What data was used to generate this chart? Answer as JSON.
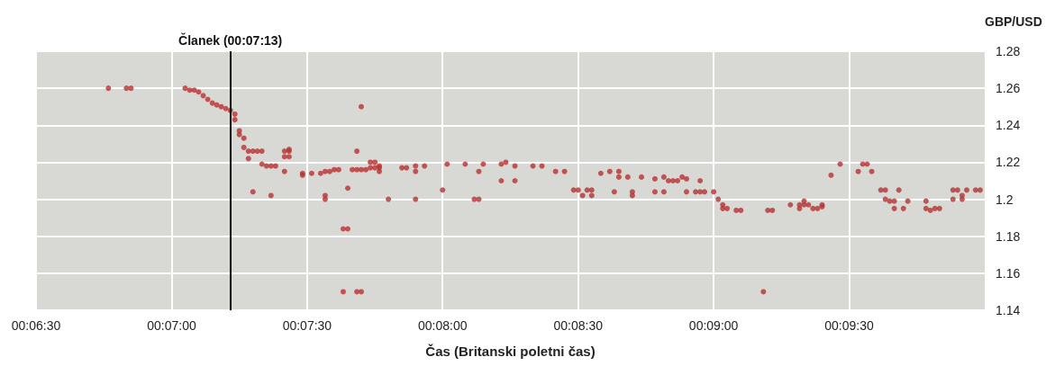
{
  "chart_data": {
    "type": "scatter",
    "xlabel": "Čas (Britanski poletni čas)",
    "ylabel": "GBP/USD",
    "color": "#b83232",
    "marker": "circle",
    "grid": true,
    "xlim": [
      0.10833,
      0.16667
    ],
    "xticks": [
      {
        "value": 0.10833,
        "label": "00:06:30"
      },
      {
        "value": 0.11667,
        "label": "00:07:00"
      },
      {
        "value": 0.125,
        "label": "00:07:30"
      },
      {
        "value": 0.13333,
        "label": "00:08:00"
      },
      {
        "value": 0.14167,
        "label": "00:08:30"
      },
      {
        "value": 0.15,
        "label": "00:09:00"
      },
      {
        "value": 0.15833,
        "label": "00:09:30"
      }
    ],
    "ylim": [
      1.14,
      1.28
    ],
    "yticks": [
      1.14,
      1.16,
      1.18,
      1.2,
      1.22,
      1.24,
      1.26,
      1.28
    ],
    "ref_lines": [
      {
        "axis": "x",
        "value": 0.12028,
        "label": "Članek (00:07:13)",
        "color": "#000000"
      }
    ],
    "x": [
      0.11278,
      0.11389,
      0.11417,
      0.1175,
      0.11778,
      0.11806,
      0.11833,
      0.11861,
      0.11889,
      0.11917,
      0.11944,
      0.11972,
      0.12,
      0.12028,
      0.12056,
      0.12056,
      0.12083,
      0.12083,
      0.12111,
      0.12111,
      0.12139,
      0.12139,
      0.12167,
      0.12222,
      0.12194,
      0.12222,
      0.12167,
      0.1225,
      0.12278,
      0.12306,
      0.12278,
      0.12361,
      0.12361,
      0.12389,
      0.12389,
      0.12361,
      0.12389,
      0.12472,
      0.12472,
      0.12528,
      0.12583,
      0.12611,
      0.12639,
      0.12667,
      0.12694,
      0.12778,
      0.12806,
      0.12833,
      0.12861,
      0.12889,
      0.12917,
      0.12889,
      0.12917,
      0.12944,
      0.12944,
      0.12944,
      0.12833,
      0.12806,
      0.1275,
      0.12611,
      0.12611,
      0.13,
      0.13167,
      0.12722,
      0.1275,
      0.12722,
      0.12806,
      0.12833,
      0.13083,
      0.13111,
      0.13167,
      0.13222,
      0.13167,
      0.13333,
      0.13361,
      0.13472,
      0.13528,
      0.13556,
      0.13556,
      0.13583,
      0.13694,
      0.13694,
      0.13722,
      0.13778,
      0.13778,
      0.13889,
      0.13944,
      0.14028,
      0.14083,
      0.14139,
      0.14167,
      0.14222,
      0.1425,
      0.14194,
      0.1425,
      0.14306,
      0.14361,
      0.14417,
      0.14417,
      0.14472,
      0.14556,
      0.14389,
      0.145,
      0.145,
      0.14639,
      0.14639,
      0.14694,
      0.14722,
      0.1475,
      0.14778,
      0.14806,
      0.14833,
      0.14917,
      0.14694,
      0.14833,
      0.14889,
      0.14917,
      0.14944,
      0.15,
      0.15028,
      0.15056,
      0.15056,
      0.15083,
      0.15139,
      0.15167,
      0.15306,
      0.15333,
      0.15361,
      0.15472,
      0.15528,
      0.15528,
      0.15556,
      0.15556,
      0.15583,
      0.15611,
      0.15639,
      0.15667,
      0.15667,
      0.15722,
      0.15778,
      0.15889,
      0.15917,
      0.15944,
      0.15972,
      0.16028,
      0.16056,
      0.16056,
      0.16083,
      0.16111,
      0.16111,
      0.16139,
      0.16167,
      0.16194,
      0.16306,
      0.16306,
      0.16333,
      0.16361,
      0.16389,
      0.16472,
      0.16472,
      0.165,
      0.16528,
      0.16528,
      0.16556,
      0.16611,
      0.16639
    ],
    "values": [
      1.26,
      1.26,
      1.26,
      1.26,
      1.259,
      1.259,
      1.258,
      1.256,
      1.254,
      1.252,
      1.251,
      1.25,
      1.249,
      1.248,
      1.246,
      1.243,
      1.237,
      1.235,
      1.233,
      1.228,
      1.226,
      1.222,
      1.226,
      1.226,
      1.226,
      1.219,
      1.204,
      1.218,
      1.218,
      1.218,
      1.202,
      1.215,
      1.226,
      1.227,
      1.226,
      1.223,
      1.223,
      1.214,
      1.213,
      1.214,
      1.214,
      1.215,
      1.215,
      1.216,
      1.216,
      1.216,
      1.216,
      1.216,
      1.216,
      1.22,
      1.22,
      1.217,
      1.217,
      1.218,
      1.217,
      1.215,
      1.25,
      1.226,
      1.206,
      1.202,
      1.2,
      1.2,
      1.2,
      1.184,
      1.184,
      1.15,
      1.15,
      1.15,
      1.217,
      1.217,
      1.218,
      1.218,
      1.215,
      1.205,
      1.219,
      1.219,
      1.2,
      1.2,
      1.215,
      1.219,
      1.219,
      1.21,
      1.22,
      1.218,
      1.21,
      1.218,
      1.218,
      1.215,
      1.215,
      1.205,
      1.205,
      1.205,
      1.205,
      1.202,
      1.202,
      1.214,
      1.215,
      1.215,
      1.212,
      1.212,
      1.212,
      1.204,
      1.204,
      1.202,
      1.204,
      1.211,
      1.212,
      1.21,
      1.21,
      1.21,
      1.212,
      1.211,
      1.21,
      1.204,
      1.204,
      1.204,
      1.204,
      1.204,
      1.204,
      1.2,
      1.197,
      1.195,
      1.195,
      1.194,
      1.194,
      1.15,
      1.194,
      1.194,
      1.197,
      1.197,
      1.195,
      1.197,
      1.199,
      1.197,
      1.195,
      1.195,
      1.196,
      1.197,
      1.213,
      1.219,
      1.215,
      1.219,
      1.219,
      1.215,
      1.205,
      1.205,
      1.2,
      1.199,
      1.195,
      1.199,
      1.205,
      1.195,
      1.199,
      1.199,
      1.195,
      1.194,
      1.195,
      1.195,
      1.2,
      1.205,
      1.205,
      1.202,
      1.2,
      1.205,
      1.205,
      1.205
    ]
  }
}
